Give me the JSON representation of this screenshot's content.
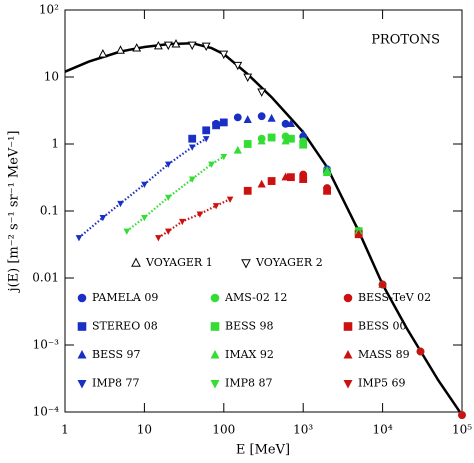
{
  "chart_data": {
    "type": "scatter",
    "annotation": "PROTONS",
    "xlabel": "E [MeV]",
    "ylabel": "j(E) [m⁻² s⁻¹ sr⁻¹ MeV⁻¹]",
    "xlog": true,
    "ylog": true,
    "xlim": [
      1,
      100000
    ],
    "ylim": [
      0.0001,
      100
    ],
    "xticks": [
      1,
      10,
      100,
      {
        "value": 1000,
        "label": "10³"
      },
      {
        "value": 10000,
        "label": "10⁴"
      },
      {
        "value": 100000,
        "label": "10⁵"
      }
    ],
    "yticks": [
      {
        "value": 0.0001,
        "label": "10⁻⁴"
      },
      {
        "value": 0.001,
        "label": "10⁻³"
      },
      0.01,
      0.1,
      1,
      10,
      {
        "value": 100,
        "label": "10²"
      }
    ],
    "model": {
      "color": "#000000",
      "x": [
        1,
        2,
        5,
        10,
        20,
        40,
        70,
        100,
        200,
        400,
        700,
        1000,
        2000,
        5000,
        10000,
        20000,
        50000,
        100000
      ],
      "values": [
        12,
        17,
        24,
        28,
        31,
        32,
        27,
        22,
        11,
        5,
        2.4,
        1.5,
        0.45,
        0.05,
        0.008,
        0.0018,
        0.0003,
        9e-05
      ]
    },
    "series": [
      {
        "name": "VOYAGER 1",
        "color": "#000000",
        "marker": "triangle-up",
        "filled": false,
        "x": [
          3,
          5,
          8,
          15,
          25
        ],
        "values": [
          22,
          25,
          27,
          29,
          31
        ]
      },
      {
        "name": "VOYAGER 2",
        "color": "#000000",
        "marker": "triangle-down",
        "filled": false,
        "x": [
          20,
          40,
          60,
          100,
          150,
          200,
          300
        ],
        "values": [
          30,
          30,
          29,
          22,
          15,
          10,
          6
        ]
      },
      {
        "name": "PAMELA 09",
        "color": "#1a2fc4",
        "marker": "circle",
        "filled": true,
        "x": [
          80,
          150,
          300,
          600,
          1000,
          2000,
          5000,
          10000,
          30000,
          100000
        ],
        "values": [
          2.0,
          2.5,
          2.6,
          2.0,
          1.3,
          0.42,
          0.05,
          0.008,
          0.0008,
          9e-05
        ]
      },
      {
        "name": "AMS-02 12",
        "color": "#33dd33",
        "marker": "circle",
        "filled": true,
        "x": [
          300,
          600,
          1000,
          2000,
          5000,
          10000,
          30000,
          100000
        ],
        "values": [
          1.2,
          1.3,
          1.1,
          0.4,
          0.05,
          0.008,
          0.0008,
          9e-05
        ]
      },
      {
        "name": "BESS-TeV 02",
        "color": "#cc1111",
        "marker": "circle",
        "filled": true,
        "x": [
          1000,
          2000,
          5000,
          10000,
          30000,
          100000
        ],
        "values": [
          0.35,
          0.22,
          0.045,
          0.008,
          0.0008,
          9e-05
        ]
      },
      {
        "name": "STEREO 08",
        "color": "#1a2fc4",
        "marker": "square",
        "filled": true,
        "x": [
          40,
          60,
          80,
          100
        ],
        "values": [
          1.2,
          1.6,
          1.9,
          2.1
        ]
      },
      {
        "name": "BESS 98",
        "color": "#33dd33",
        "marker": "square",
        "filled": true,
        "x": [
          200,
          400,
          700,
          1000,
          2000,
          5000
        ],
        "values": [
          1.0,
          1.25,
          1.2,
          1.0,
          0.38,
          0.05
        ]
      },
      {
        "name": "BESS 00",
        "color": "#cc1111",
        "marker": "square",
        "filled": true,
        "x": [
          200,
          400,
          700,
          1000,
          2000,
          5000
        ],
        "values": [
          0.2,
          0.28,
          0.32,
          0.3,
          0.2,
          0.045
        ]
      },
      {
        "name": "BESS 97",
        "color": "#1a2fc4",
        "marker": "triangle-up",
        "filled": true,
        "x": [
          200,
          400,
          700,
          1000,
          2000,
          5000,
          10000
        ],
        "values": [
          2.3,
          2.4,
          2.0,
          1.4,
          0.42,
          0.05,
          0.008
        ]
      },
      {
        "name": "IMAX 92",
        "color": "#33dd33",
        "marker": "triangle-up",
        "filled": true,
        "x": [
          150,
          300,
          600,
          1000,
          2000,
          5000,
          10000
        ],
        "values": [
          0.8,
          1.1,
          1.1,
          0.95,
          0.4,
          0.05,
          0.008
        ]
      },
      {
        "name": "MASS 89",
        "color": "#cc1111",
        "marker": "triangle-up",
        "filled": true,
        "x": [
          300,
          600,
          1000,
          2000,
          5000,
          10000
        ],
        "values": [
          0.25,
          0.32,
          0.3,
          0.2,
          0.045,
          0.008
        ]
      },
      {
        "name": "IMP8 77",
        "color": "#1a2fc4",
        "marker": "triangle-down",
        "filled": true,
        "dotted": true,
        "x": [
          1.5,
          3,
          5,
          10,
          20,
          40,
          60
        ],
        "values": [
          0.04,
          0.08,
          0.13,
          0.25,
          0.5,
          0.9,
          1.2
        ]
      },
      {
        "name": "IMP8 87",
        "color": "#33dd33",
        "marker": "triangle-down",
        "filled": true,
        "dotted": true,
        "x": [
          6,
          10,
          20,
          40,
          70,
          100
        ],
        "values": [
          0.05,
          0.08,
          0.16,
          0.3,
          0.5,
          0.65
        ]
      },
      {
        "name": "IMP5 69",
        "color": "#cc1111",
        "marker": "triangle-down",
        "filled": true,
        "dotted": true,
        "x": [
          15,
          20,
          30,
          50,
          80,
          120
        ],
        "values": [
          0.04,
          0.05,
          0.07,
          0.09,
          0.12,
          0.15
        ]
      }
    ]
  }
}
